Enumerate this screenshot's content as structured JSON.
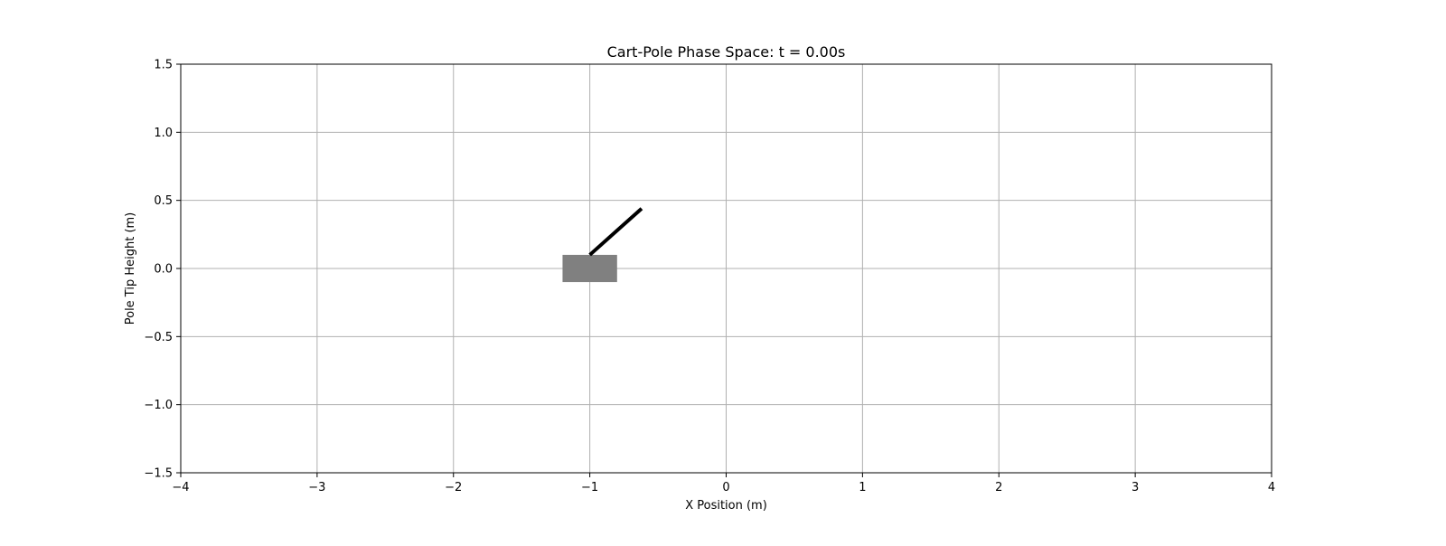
{
  "chart_data": {
    "type": "scatter",
    "title": "Cart-Pole Phase Space: t = 0.00s",
    "xlabel": "X Position (m)",
    "ylabel": "Pole Tip Height (m)",
    "xlim": [
      -4,
      4
    ],
    "ylim": [
      -1.5,
      1.5
    ],
    "xticks": [
      -4,
      -3,
      -2,
      -1,
      0,
      1,
      2,
      3,
      4
    ],
    "xtick_labels": [
      "−4",
      "−3",
      "−2",
      "−1",
      "0",
      "1",
      "2",
      "3",
      "4"
    ],
    "yticks": [
      -1.5,
      -1.0,
      -0.5,
      0.0,
      0.5,
      1.0,
      1.5
    ],
    "ytick_labels": [
      "−1.5",
      "−1.0",
      "−0.5",
      "0.0",
      "0.5",
      "1.0",
      "1.5"
    ],
    "grid": true,
    "cart": {
      "x_range": [
        -1.2,
        -0.8
      ],
      "y_range": [
        -0.1,
        0.1
      ],
      "color": "#808080"
    },
    "pole": {
      "x": [
        -1.0,
        -0.62
      ],
      "y": [
        0.1,
        0.44
      ],
      "color": "#000000"
    }
  }
}
